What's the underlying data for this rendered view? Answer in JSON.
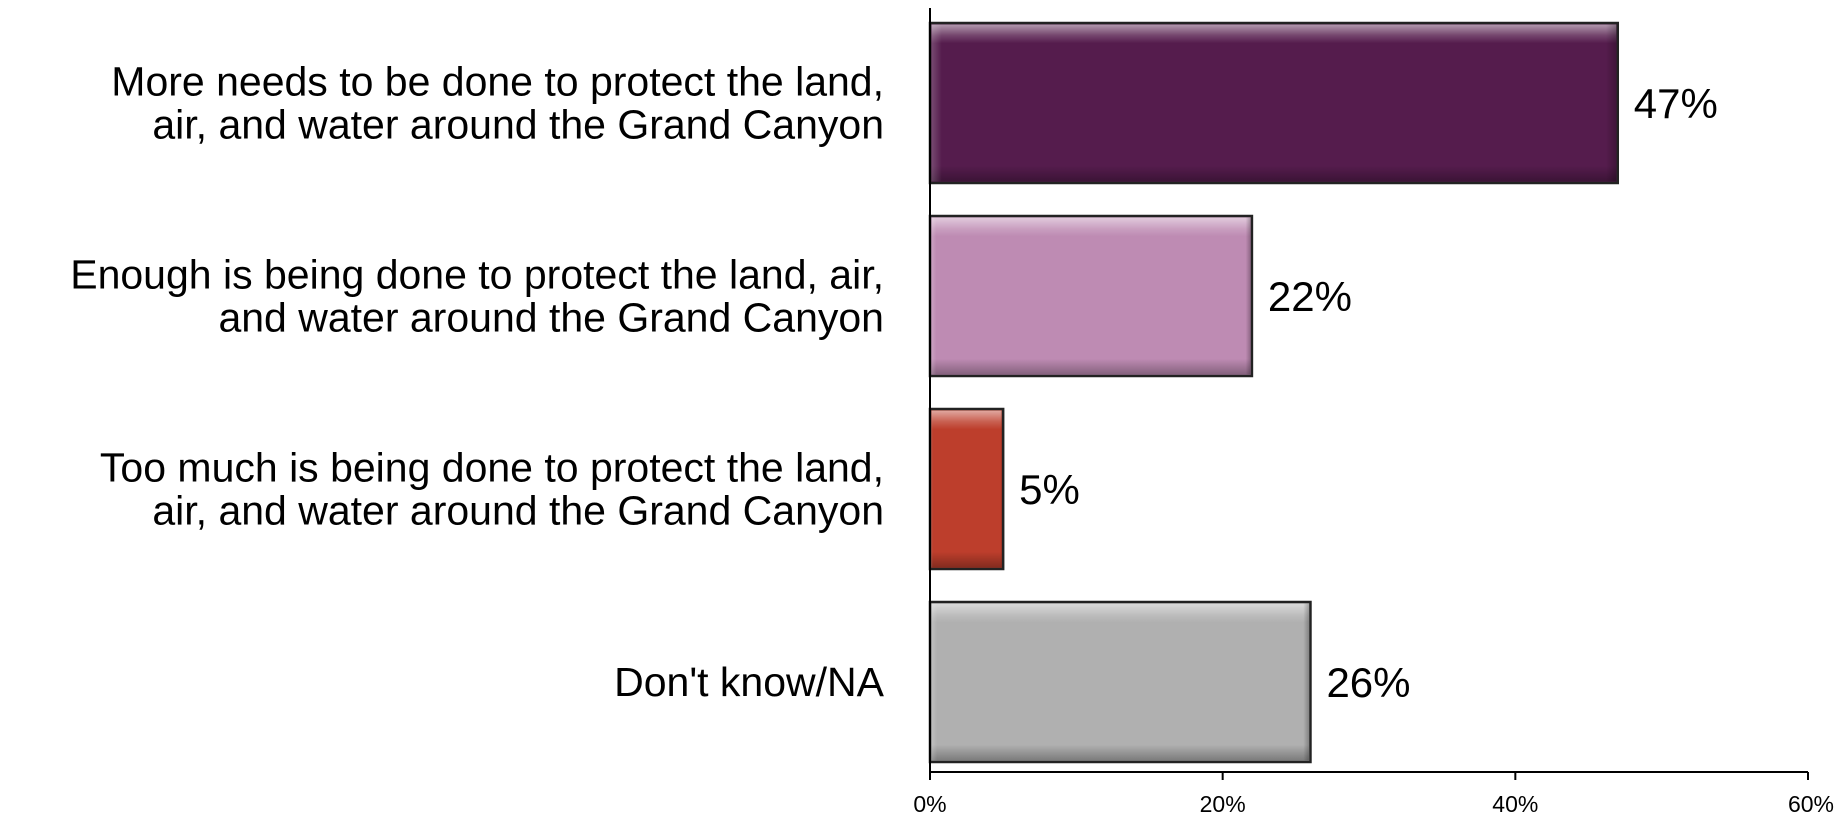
{
  "chart_data": {
    "type": "bar",
    "orientation": "horizontal",
    "categories": [
      [
        "More needs to be done to protect the land,",
        "air, and water around the Grand Canyon"
      ],
      [
        "Enough is being done to protect the land, air,",
        "and water around the Grand Canyon"
      ],
      [
        "Too much is being done to protect the land,",
        "air, and water around the Grand Canyon"
      ],
      [
        "Don't know/NA"
      ]
    ],
    "values": [
      47,
      22,
      5,
      26
    ],
    "value_labels": [
      "47%",
      "22%",
      "5%",
      "26%"
    ],
    "colors": [
      "#551c4d",
      "#be8bb3",
      "#bd3e2c",
      "#b0b0b0"
    ],
    "xlim": [
      0,
      60
    ],
    "ticks": [
      0,
      20,
      40,
      60
    ],
    "tick_labels": [
      "0%",
      "20%",
      "40%",
      "60%"
    ],
    "grid": false,
    "legend": "none",
    "title": "",
    "xlabel": "",
    "ylabel": ""
  }
}
